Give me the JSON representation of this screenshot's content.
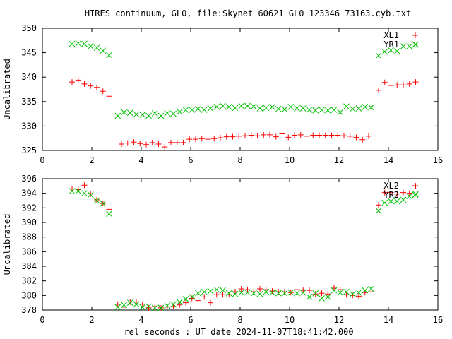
{
  "chart_data": {
    "type": "scatter",
    "title": "HIRES continuum, GL0, file:Skynet_60621_GL0_123346_73163.cyb.txt",
    "xlabel": "rel seconds : UT date 2024-11-07T18:41:42.000",
    "legend_position": "top-right",
    "panels": [
      {
        "ylabel": "Uncalibrated",
        "xlim": [
          0,
          16
        ],
        "ylim": [
          325,
          350
        ],
        "xticks": [
          0,
          2,
          4,
          6,
          8,
          10,
          12,
          14,
          16
        ],
        "yticks": [
          325,
          330,
          335,
          340,
          345,
          350
        ],
        "grid": false,
        "series": [
          {
            "name": "XL1",
            "color": "#ff0000",
            "marker": "plus",
            "x": [
              1.2,
              1.45,
              1.7,
              1.95,
              2.2,
              2.45,
              2.7,
              3.2,
              3.45,
              3.7,
              3.95,
              4.2,
              4.45,
              4.7,
              4.95,
              5.2,
              5.45,
              5.7,
              5.95,
              6.2,
              6.45,
              6.7,
              6.95,
              7.2,
              7.45,
              7.7,
              7.95,
              8.2,
              8.45,
              8.7,
              8.95,
              9.2,
              9.45,
              9.7,
              9.95,
              10.2,
              10.45,
              10.7,
              10.95,
              11.2,
              11.45,
              11.7,
              11.95,
              12.2,
              12.45,
              12.7,
              12.95,
              13.2,
              13.6,
              13.85,
              14.1,
              14.35,
              14.6,
              14.85,
              15.1
            ],
            "y": [
              339.0,
              339.4,
              338.6,
              338.2,
              337.9,
              337.1,
              336.1,
              326.3,
              326.5,
              326.7,
              326.4,
              326.2,
              326.6,
              326.3,
              325.7,
              326.6,
              326.6,
              326.6,
              327.3,
              327.3,
              327.4,
              327.3,
              327.4,
              327.6,
              327.8,
              327.8,
              327.9,
              328.0,
              328.1,
              328.0,
              328.2,
              328.2,
              327.8,
              328.4,
              327.7,
              328.1,
              328.2,
              327.9,
              328.1,
              328.1,
              328.1,
              328.1,
              328.1,
              328.0,
              327.9,
              327.7,
              327.2,
              327.9,
              337.3,
              338.9,
              338.3,
              338.4,
              338.4,
              338.6,
              339.0
            ]
          },
          {
            "name": "YR1",
            "color": "#00c000",
            "marker": "x",
            "x": [
              1.2,
              1.45,
              1.7,
              1.95,
              2.2,
              2.45,
              2.7,
              3.05,
              3.3,
              3.55,
              3.8,
              4.05,
              4.3,
              4.55,
              4.8,
              5.05,
              5.3,
              5.55,
              5.8,
              6.05,
              6.3,
              6.55,
              6.8,
              7.05,
              7.3,
              7.55,
              7.8,
              8.05,
              8.3,
              8.55,
              8.8,
              9.05,
              9.3,
              9.55,
              9.8,
              10.05,
              10.3,
              10.55,
              10.8,
              11.05,
              11.3,
              11.55,
              11.8,
              12.05,
              12.3,
              12.55,
              12.8,
              13.05,
              13.3,
              13.6,
              13.85,
              14.1,
              14.35,
              14.6,
              14.85,
              15.1
            ],
            "y": [
              346.8,
              346.9,
              346.8,
              346.3,
              346.0,
              345.4,
              344.5,
              332.1,
              332.8,
              332.7,
              332.4,
              332.3,
              332.1,
              332.6,
              332.1,
              332.6,
              332.5,
              332.9,
              333.3,
              333.3,
              333.5,
              333.3,
              333.6,
              333.9,
              334.1,
              333.9,
              333.7,
              334.1,
              334.1,
              334.0,
              333.6,
              333.7,
              333.9,
              333.5,
              333.4,
              333.9,
              333.6,
              333.6,
              333.3,
              333.2,
              333.3,
              333.2,
              333.3,
              332.8,
              334.0,
              333.5,
              333.6,
              333.9,
              333.8,
              344.4,
              345.2,
              345.5,
              345.3,
              346.3,
              346.3,
              346.7
            ]
          }
        ]
      },
      {
        "ylabel": "Uncalibrated",
        "xlim": [
          0,
          16
        ],
        "ylim": [
          378,
          396
        ],
        "xticks": [
          0,
          2,
          4,
          6,
          8,
          10,
          12,
          14,
          16
        ],
        "yticks": [
          378,
          380,
          382,
          384,
          386,
          388,
          390,
          392,
          394,
          396
        ],
        "grid": false,
        "series": [
          {
            "name": "XL2",
            "color": "#ff0000",
            "marker": "plus",
            "x": [
              1.2,
              1.45,
              1.7,
              1.95,
              2.2,
              2.45,
              2.7,
              3.05,
              3.3,
              3.55,
              3.8,
              4.05,
              4.3,
              4.55,
              4.8,
              5.05,
              5.3,
              5.55,
              5.8,
              6.05,
              6.3,
              6.55,
              6.8,
              7.05,
              7.3,
              7.55,
              7.8,
              8.05,
              8.3,
              8.55,
              8.8,
              9.05,
              9.3,
              9.55,
              9.8,
              10.05,
              10.3,
              10.55,
              10.8,
              11.05,
              11.3,
              11.55,
              11.8,
              12.05,
              12.3,
              12.55,
              12.8,
              13.05,
              13.3,
              13.6,
              13.85,
              14.1,
              14.35,
              14.6,
              14.85,
              15.1
            ],
            "y": [
              394.6,
              394.5,
              395.1,
              393.9,
              393.1,
              392.6,
              391.8,
              378.8,
              378.4,
              379.1,
              379.1,
              378.8,
              378.3,
              378.5,
              378.3,
              378.4,
              378.5,
              378.7,
              379.0,
              379.6,
              379.3,
              379.8,
              379.0,
              380.1,
              380.1,
              380.1,
              380.5,
              380.9,
              380.8,
              380.5,
              380.9,
              380.8,
              380.6,
              380.5,
              380.5,
              380.4,
              380.8,
              380.7,
              380.7,
              380.2,
              380.3,
              380.2,
              381.0,
              380.8,
              380.1,
              380.0,
              379.9,
              380.4,
              380.5,
              392.4,
              394.1,
              394.1,
              393.9,
              394.1,
              394.0,
              395.0
            ]
          },
          {
            "name": "YR2",
            "color": "#00c000",
            "marker": "x",
            "x": [
              1.2,
              1.45,
              1.7,
              1.95,
              2.2,
              2.45,
              2.7,
              3.05,
              3.3,
              3.55,
              3.8,
              4.05,
              4.3,
              4.55,
              4.8,
              5.05,
              5.3,
              5.55,
              5.8,
              6.05,
              6.3,
              6.55,
              6.8,
              7.05,
              7.3,
              7.55,
              7.8,
              8.05,
              8.3,
              8.55,
              8.8,
              9.05,
              9.3,
              9.55,
              9.8,
              10.05,
              10.3,
              10.55,
              10.8,
              11.05,
              11.3,
              11.55,
              11.8,
              12.05,
              12.3,
              12.55,
              12.8,
              13.05,
              13.3,
              13.6,
              13.85,
              14.1,
              14.35,
              14.6,
              14.85,
              15.1
            ],
            "y": [
              394.3,
              394.3,
              394.0,
              393.8,
              393.0,
              392.6,
              391.2,
              378.4,
              378.7,
              379.0,
              378.8,
              378.4,
              378.5,
              378.3,
              378.3,
              378.6,
              378.8,
              379.1,
              379.5,
              379.8,
              380.3,
              380.5,
              380.6,
              380.8,
              380.7,
              380.3,
              380.2,
              380.4,
              380.4,
              380.3,
              380.2,
              380.5,
              380.4,
              380.3,
              380.3,
              380.4,
              380.3,
              380.4,
              379.8,
              380.3,
              379.6,
              379.8,
              380.7,
              380.4,
              380.5,
              380.2,
              380.4,
              380.7,
              380.9,
              391.6,
              392.7,
              392.9,
              392.9,
              393.1,
              393.6,
              393.9
            ]
          }
        ]
      }
    ]
  }
}
